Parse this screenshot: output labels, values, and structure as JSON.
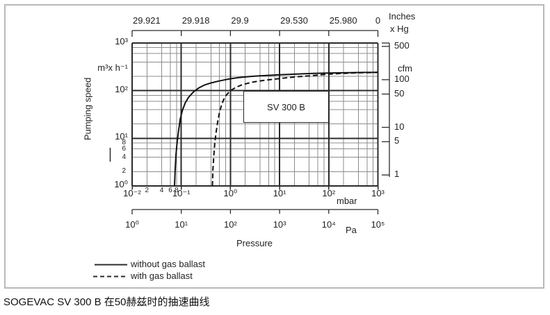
{
  "figure": {
    "caption": "SOGEVAC SV 300 B 在50赫兹时的抽速曲线",
    "model_label": "SV 300 B"
  },
  "legend": [
    {
      "style": "solid",
      "label": "without gas ballast"
    },
    {
      "style": "dashed",
      "label": "with gas ballast"
    }
  ],
  "chart_data": {
    "type": "line",
    "title": "SOGEVAC SV 300 B pumping speed curve at 50 Hz",
    "x_scale": "log",
    "y_scale": "log",
    "xlim": [
      0.01,
      1000
    ],
    "ylim": [
      1,
      1000
    ],
    "grid": "log minor lines at 2,4,6,8",
    "x_label": "Pressure",
    "y_label": "Pumping speed",
    "y_unit_left": "m³x h⁻¹",
    "y_unit_right": "cfm",
    "x_unit_primary": "mbar",
    "x_unit_secondary": "Pa",
    "cfm_per_m3h": 0.5886,
    "top_axis": {
      "unit_line1": "Inches",
      "unit_line2": "x Hg",
      "labels": [
        {
          "text": "29.921",
          "log": -2
        },
        {
          "text": "29.918",
          "log": -1
        },
        {
          "text": "29.9",
          "log": 0
        },
        {
          "text": "29.530",
          "log": 1
        },
        {
          "text": "25.980",
          "log": 2
        },
        {
          "text": "0",
          "log": 3,
          "align": "center"
        }
      ]
    },
    "mbar_labels": [
      {
        "text": "10⁻²",
        "log": -2
      },
      {
        "text": "10⁻¹",
        "log": -1
      },
      {
        "text": "10⁰",
        "log": 0
      },
      {
        "text": "10¹",
        "log": 1
      },
      {
        "text": "10²",
        "log": 2
      },
      {
        "text": "10³",
        "log": 3
      }
    ],
    "mbar_minor_labels": [
      {
        "text": "2",
        "log": -1.69897
      },
      {
        "text": "4",
        "log": -1.39794
      },
      {
        "text": "6",
        "log": -1.22185
      },
      {
        "text": "8",
        "log": -1.09691
      }
    ],
    "pa_labels": [
      {
        "text": "10⁰",
        "log": -2
      },
      {
        "text": "10¹",
        "log": -1
      },
      {
        "text": "10²",
        "log": 0
      },
      {
        "text": "10³",
        "log": 1
      },
      {
        "text": "10⁴",
        "log": 2
      },
      {
        "text": "10⁵",
        "log": 3
      }
    ],
    "y_left_labels": [
      {
        "text": "10³",
        "log": 3
      },
      {
        "text": "10²",
        "log": 2
      },
      {
        "text": "10¹",
        "log": 1
      },
      {
        "text": "10⁰",
        "log": 0
      }
    ],
    "y_left_minor_labels": [
      {
        "text": "8",
        "log": 0.90309
      },
      {
        "text": "6",
        "log": 0.77815
      },
      {
        "text": "4",
        "log": 0.60206
      },
      {
        "text": "2",
        "log": 0.30103
      }
    ],
    "cfm_labels": [
      {
        "text": "500",
        "value": 500
      },
      {
        "text": "100",
        "value": 100
      },
      {
        "text": "50",
        "value": 50
      },
      {
        "text": "10",
        "value": 10
      },
      {
        "text": "5",
        "value": 5
      },
      {
        "text": "1",
        "value": 1
      }
    ],
    "series": [
      {
        "name": "without gas ballast",
        "style": "solid",
        "points": [
          [
            0.073,
            1
          ],
          [
            0.075,
            2.2
          ],
          [
            0.078,
            4.5
          ],
          [
            0.082,
            8
          ],
          [
            0.086,
            12
          ],
          [
            0.095,
            25
          ],
          [
            0.105,
            38
          ],
          [
            0.12,
            55
          ],
          [
            0.14,
            72
          ],
          [
            0.17,
            90
          ],
          [
            0.19,
            100
          ],
          [
            0.23,
            115
          ],
          [
            0.3,
            132
          ],
          [
            0.4,
            145
          ],
          [
            0.55,
            157
          ],
          [
            0.8,
            170
          ],
          [
            1,
            178
          ],
          [
            1.5,
            188
          ],
          [
            2.5,
            198
          ],
          [
            4,
            205
          ],
          [
            7,
            211
          ],
          [
            10,
            215
          ],
          [
            20,
            222
          ],
          [
            50,
            230
          ],
          [
            100,
            234
          ],
          [
            250,
            238
          ],
          [
            500,
            241
          ],
          [
            1000,
            243
          ]
        ]
      },
      {
        "name": "with gas ballast",
        "style": "dashed",
        "points": [
          [
            0.43,
            1
          ],
          [
            0.44,
            2.2
          ],
          [
            0.46,
            4.5
          ],
          [
            0.48,
            8
          ],
          [
            0.51,
            13
          ],
          [
            0.55,
            22
          ],
          [
            0.6,
            35
          ],
          [
            0.66,
            50
          ],
          [
            0.73,
            65
          ],
          [
            0.82,
            80
          ],
          [
            1,
            100
          ],
          [
            1.3,
            118
          ],
          [
            1.7,
            132
          ],
          [
            2.2,
            142
          ],
          [
            3,
            153
          ],
          [
            4.5,
            163
          ],
          [
            7,
            172
          ],
          [
            10,
            179
          ],
          [
            15,
            188
          ],
          [
            25,
            197
          ],
          [
            40,
            204
          ],
          [
            70,
            215
          ],
          [
            100,
            222
          ],
          [
            200,
            231
          ],
          [
            400,
            237
          ],
          [
            700,
            240
          ],
          [
            1000,
            242
          ]
        ]
      }
    ]
  }
}
